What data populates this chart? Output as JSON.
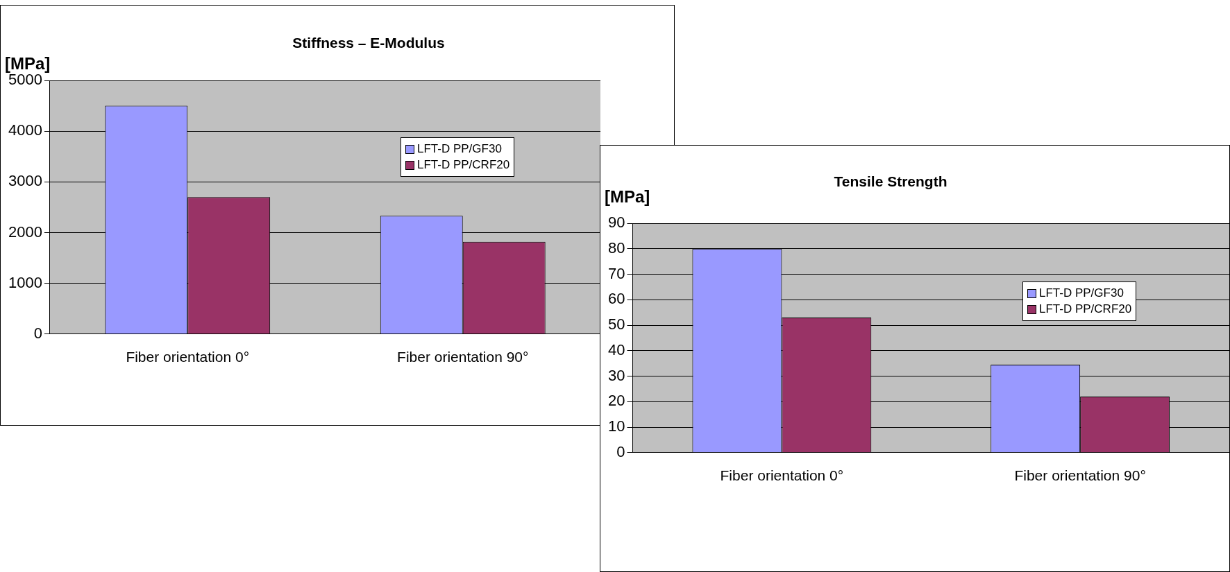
{
  "chart_data": [
    {
      "type": "bar",
      "title": "Stiffness – E-Modulus",
      "ylabel": "[MPa]",
      "categories": [
        "Fiber orientation 0°",
        "Fiber orientation 90°"
      ],
      "series": [
        {
          "name": "LFT-D PP/GF30",
          "color": "#9999ff",
          "values": [
            4500,
            2330
          ]
        },
        {
          "name": "LFT-D PP/CRF20",
          "color": "#993366",
          "values": [
            2700,
            1820
          ]
        }
      ],
      "ylim": [
        0,
        5000
      ],
      "yticks": [
        0,
        1000,
        2000,
        3000,
        4000,
        5000
      ],
      "grid": "y",
      "legend": "right"
    },
    {
      "type": "bar",
      "title": "Tensile Strength",
      "ylabel": "[MPa]",
      "categories": [
        "Fiber orientation 0°",
        "Fiber orientation 90°"
      ],
      "series": [
        {
          "name": "LFT-D PP/GF30",
          "color": "#9999ff",
          "values": [
            80,
            34.5
          ]
        },
        {
          "name": "LFT-D PP/CRF20",
          "color": "#993366",
          "values": [
            53,
            22
          ]
        }
      ],
      "ylim": [
        0,
        90
      ],
      "yticks": [
        0,
        10,
        20,
        30,
        40,
        50,
        60,
        70,
        80,
        90
      ],
      "grid": "y",
      "legend": "right"
    }
  ]
}
